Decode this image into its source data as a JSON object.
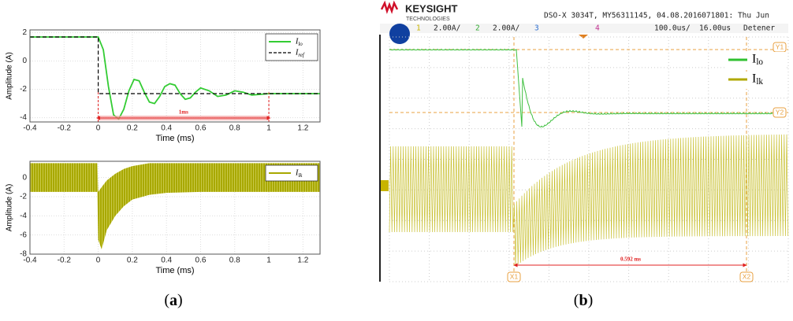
{
  "figure": {
    "captions": [
      "(a)",
      "(b)"
    ]
  },
  "chart_data": [
    {
      "type": "line",
      "xlabel": "Time (ms)",
      "ylabel": "Amplitude (A)",
      "xlim": [
        -0.4,
        1.3
      ],
      "xticks": [
        -0.4,
        -0.2,
        0,
        0.2,
        0.4,
        0.6,
        0.8,
        1,
        1.2
      ],
      "ylim": [
        -4.3,
        2.2
      ],
      "yticks": [
        -4,
        -2,
        0,
        2
      ],
      "grid": true,
      "legend": "upper right",
      "series": [
        {
          "name": "Ilo",
          "color": "#33cc33",
          "style": "solid",
          "x": [
            -0.4,
            0,
            0.03,
            0.06,
            0.09,
            0.12,
            0.15,
            0.18,
            0.21,
            0.24,
            0.27,
            0.3,
            0.33,
            0.36,
            0.39,
            0.42,
            0.45,
            0.48,
            0.51,
            0.54,
            0.57,
            0.6,
            0.65,
            0.7,
            0.75,
            0.8,
            0.85,
            0.9,
            1.0,
            1.1,
            1.2,
            1.3
          ],
          "values": [
            1.7,
            1.7,
            0.8,
            -1.8,
            -3.8,
            -4.1,
            -3.4,
            -2.1,
            -1.3,
            -1.4,
            -2.2,
            -2.9,
            -3.0,
            -2.5,
            -1.8,
            -1.6,
            -1.7,
            -2.3,
            -2.7,
            -2.6,
            -2.2,
            -1.9,
            -2.1,
            -2.5,
            -2.4,
            -2.1,
            -2.2,
            -2.4,
            -2.3,
            -2.3,
            -2.3,
            -2.3
          ]
        },
        {
          "name": "Iref",
          "color": "#000000",
          "style": "dashed",
          "x": [
            -0.4,
            0,
            0,
            1.3
          ],
          "values": [
            1.7,
            1.7,
            -2.3,
            -2.3
          ]
        }
      ],
      "span": {
        "label": "1ms",
        "x": [
          0,
          1
        ],
        "color": "#e02020"
      }
    },
    {
      "type": "band",
      "xlabel": "Time (ms)",
      "ylabel": "Amplitude (A)",
      "xlim": [
        -0.4,
        1.3
      ],
      "xticks": [
        -0.4,
        -0.2,
        0,
        0.2,
        0.4,
        0.6,
        0.8,
        1,
        1.2
      ],
      "ylim": [
        -8,
        1.7
      ],
      "yticks": [
        -8,
        -6,
        -4,
        -2,
        0
      ],
      "grid": true,
      "legend": "upper right",
      "series": [
        {
          "name": "Ilk",
          "color": "#a8a800",
          "x": [
            -0.4,
            -0.005,
            0,
            0.02,
            0.05,
            0.1,
            0.15,
            0.2,
            0.3,
            0.4,
            0.6,
            1.3
          ],
          "high": [
            1.5,
            1.5,
            -1.5,
            -1.0,
            -0.3,
            0.4,
            0.9,
            1.2,
            1.5,
            1.5,
            1.5,
            1.5
          ],
          "low": [
            -1.5,
            -1.5,
            -6.5,
            -7.5,
            -5.5,
            -4.0,
            -3.0,
            -2.3,
            -1.8,
            -1.6,
            -1.5,
            -1.5
          ]
        }
      ]
    }
  ],
  "scope": {
    "brand": "KEYSIGHT",
    "brand_sub": "TECHNOLOGIES",
    "header": "DSO-X 3034T, MY56311145, 04.08.2016071801: Thu Jun",
    "channels": [
      "1",
      "2.00A/",
      "2",
      "2.00A/",
      "3",
      "4"
    ],
    "timebase": "100.0us/",
    "delay": "16.00us",
    "status": "Detener",
    "legend": [
      "Ilo",
      "Ilk"
    ],
    "measurement": "0.592 ms",
    "cursors": [
      "X1",
      "X2",
      "Y1",
      "Y2"
    ]
  }
}
